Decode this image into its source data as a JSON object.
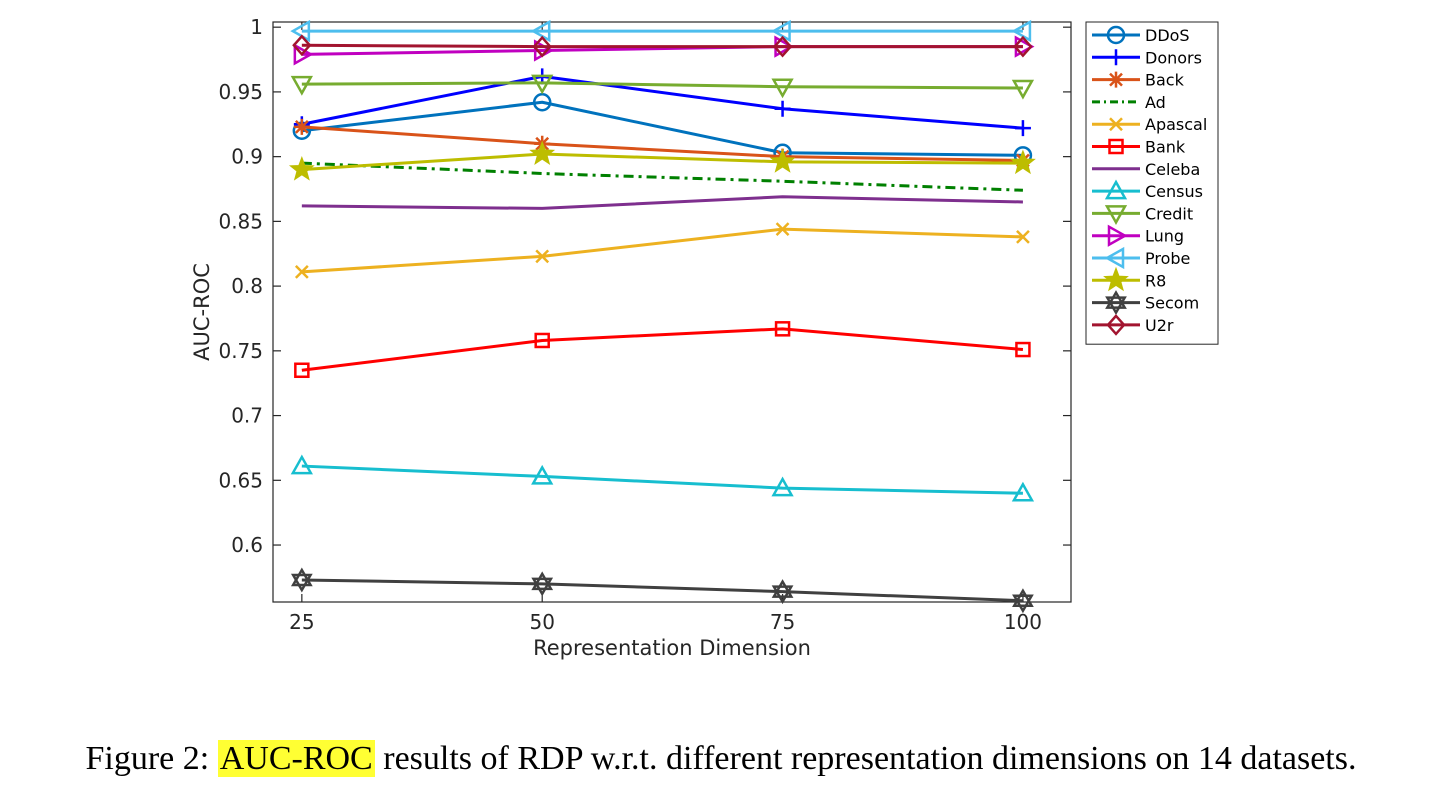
{
  "chart_data": {
    "type": "line",
    "xlabel": "Representation Dimension",
    "ylabel": "AUC-ROC",
    "x": [
      25,
      50,
      75,
      100
    ],
    "x_ticks": [
      "25",
      "50",
      "75",
      "100"
    ],
    "y_ticks": [
      "0.6",
      "0.65",
      "0.7",
      "0.75",
      "0.8",
      "0.85",
      "0.9",
      "0.95",
      "1"
    ],
    "ylim": [
      0.556,
      1.004
    ],
    "xlim": [
      22,
      105
    ],
    "grid": false,
    "legend_position": "outside-right-top",
    "series": [
      {
        "name": "DDoS",
        "values": [
          0.92,
          0.942,
          0.903,
          0.901
        ],
        "color": "#0072bd",
        "marker": "circle",
        "dash": "solid"
      },
      {
        "name": "Donors",
        "values": [
          0.925,
          0.962,
          0.937,
          0.922
        ],
        "color": "#0000ff",
        "marker": "plus",
        "dash": "solid"
      },
      {
        "name": "Back",
        "values": [
          0.923,
          0.91,
          0.9,
          0.897
        ],
        "color": "#d95319",
        "marker": "asterisk",
        "dash": "solid"
      },
      {
        "name": "Ad",
        "values": [
          0.895,
          0.887,
          0.881,
          0.874
        ],
        "color": "#008000",
        "marker": "none",
        "dash": "dashdot"
      },
      {
        "name": "Apascal",
        "values": [
          0.811,
          0.823,
          0.844,
          0.838
        ],
        "color": "#edb120",
        "marker": "x",
        "dash": "solid"
      },
      {
        "name": "Bank",
        "values": [
          0.735,
          0.758,
          0.767,
          0.751
        ],
        "color": "#ff0000",
        "marker": "square",
        "dash": "solid"
      },
      {
        "name": "Celeba",
        "values": [
          0.862,
          0.86,
          0.869,
          0.865
        ],
        "color": "#7e2f8e",
        "marker": "none",
        "dash": "solid"
      },
      {
        "name": "Census",
        "values": [
          0.661,
          0.653,
          0.644,
          0.64
        ],
        "color": "#17becf",
        "marker": "triangle-up",
        "dash": "solid"
      },
      {
        "name": "Credit",
        "values": [
          0.956,
          0.957,
          0.954,
          0.953
        ],
        "color": "#77ac30",
        "marker": "triangle-down",
        "dash": "solid"
      },
      {
        "name": "Lung",
        "values": [
          0.979,
          0.982,
          0.985,
          0.985
        ],
        "color": "#c000c0",
        "marker": "triangle-right",
        "dash": "solid"
      },
      {
        "name": "Probe",
        "values": [
          0.997,
          0.997,
          0.997,
          0.997
        ],
        "color": "#4dbeee",
        "marker": "triangle-left",
        "dash": "solid"
      },
      {
        "name": "R8",
        "values": [
          0.89,
          0.902,
          0.896,
          0.895
        ],
        "color": "#bdbd00",
        "marker": "star5",
        "dash": "solid"
      },
      {
        "name": "Secom",
        "values": [
          0.573,
          0.57,
          0.564,
          0.557
        ],
        "color": "#404040",
        "marker": "hexagram",
        "dash": "solid"
      },
      {
        "name": "U2r",
        "values": [
          0.986,
          0.985,
          0.985,
          0.985
        ],
        "color": "#a2142f",
        "marker": "diamond",
        "dash": "solid"
      }
    ]
  },
  "caption": {
    "prefix": "Figure 2: ",
    "highlight": "AUC-ROC",
    "rest": " results of RDP w.r.t. different representation dimensions on 14 datasets."
  }
}
